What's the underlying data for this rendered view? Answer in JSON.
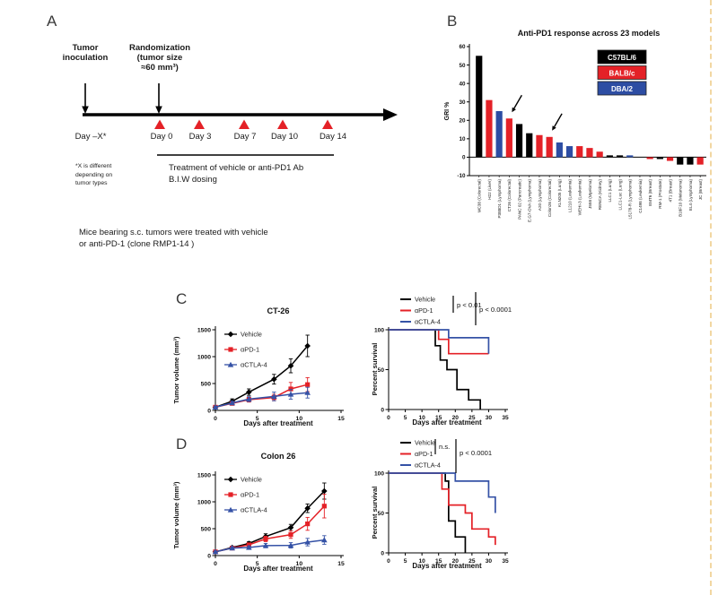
{
  "page": {
    "red": "#e42127",
    "blue": "#2d4da3",
    "black": "#000000",
    "line_blue": "#3552a6",
    "crop_border_color": "#f2d7a2"
  },
  "panelA": {
    "label": "A",
    "inoculation_line1": "Tumor",
    "inoculation_line2": "inoculation",
    "randomization_line1": "Randomization",
    "randomization_line2": "(tumor size",
    "randomization_line3": "≈60 mm³)",
    "day_labels": [
      "Day –X*",
      "Day 0",
      "Day 3",
      "Day 7",
      "Day 10",
      "Day 14"
    ],
    "footnote_line1": "*X is different",
    "footnote_line2": "depending on",
    "footnote_line3": "tumor types",
    "treatment_line1": "Treatment of vehicle or anti-PD1 Ab",
    "treatment_line2": "B.I.W dosing",
    "caption_line1": "Mice bearing s.c. tumors were treated with vehicle",
    "caption_line2": "or anti-PD-1 (clone RMP1-14 )"
  },
  "panelB": {
    "label": "B"
  },
  "panelC": {
    "label": "C"
  },
  "panelD": {
    "label": "D"
  },
  "chart_data": [
    {
      "id": "bar-models",
      "type": "bar",
      "title": "Anti-PD1 response across 23 models",
      "ylabel": "GRI %",
      "ylim": [
        -10,
        60
      ],
      "yticks": [
        60,
        50,
        40,
        30,
        20,
        10,
        0,
        -10
      ],
      "legend": [
        {
          "label": "C57BL/6",
          "color": "#000000"
        },
        {
          "label": "BALB/c",
          "color": "#e42127"
        },
        {
          "label": "DBA/2",
          "color": "#2d4da3"
        }
      ],
      "strain_colors": {
        "C57BL/6": "#000000",
        "BALB/c": "#e42127",
        "DBA/2": "#2d4da3"
      },
      "categories": [
        "MC38 (Colorectal)",
        "H22 (Liver)",
        "P388D1 (Lymphoma)",
        "CT26 (Colorectal)",
        "PANC 02 (Pancreatic)",
        "E.G7-OVA (Lymphoma)",
        "A20 (Lymphoma)",
        "Colon26 (Colorectal)",
        "KLN205 (Lung)",
        "L1210 (Leukemia)",
        "WEHI-3 (Leukemia)",
        "J558 (Myeloma)",
        "RENCA (Kidney)",
        "LLC1 (Lung)",
        "LLC1-Luc (Lung)",
        "L5178-R (Lymphoma)",
        "C1498 (Leukemia)",
        "EMT6 (Breast)",
        "RM-1 (Prostate)",
        "4T1 (Breast)",
        "B16F10 (Melanoma)",
        "EL4 (Lymphoma)",
        "JC (Breast)"
      ],
      "values": [
        55,
        31,
        25,
        21,
        18,
        13,
        12,
        11,
        8,
        6,
        6,
        5,
        3,
        1,
        1,
        1,
        0,
        -1,
        -1,
        -2,
        -4,
        -4,
        -4
      ],
      "strains": [
        "C57BL/6",
        "BALB/c",
        "DBA/2",
        "BALB/c",
        "C57BL/6",
        "C57BL/6",
        "BALB/c",
        "BALB/c",
        "DBA/2",
        "DBA/2",
        "BALB/c",
        "BALB/c",
        "BALB/c",
        "C57BL/6",
        "C57BL/6",
        "DBA/2",
        "C57BL/6",
        "BALB/c",
        "C57BL/6",
        "BALB/c",
        "C57BL/6",
        "C57BL/6",
        "BALB/c"
      ],
      "arrow_indices": [
        3,
        7
      ]
    },
    {
      "id": "ct26-volume",
      "type": "line",
      "title": "CT-26",
      "xlabel": "Days after treatment",
      "ylabel": "Tumor volume (mm³)",
      "xlim": [
        0,
        15
      ],
      "xticks": [
        0,
        5,
        10,
        15
      ],
      "ylim": [
        0,
        1500
      ],
      "yticks": [
        0,
        500,
        1000,
        1500
      ],
      "series": [
        {
          "name": "Vehicle",
          "color": "#000000",
          "marker": "diamond",
          "x": [
            0,
            2,
            4,
            7,
            9,
            11
          ],
          "y": [
            60,
            170,
            340,
            580,
            830,
            1200
          ],
          "err": [
            20,
            45,
            60,
            90,
            130,
            200
          ]
        },
        {
          "name": "αPD-1",
          "color": "#e42127",
          "marker": "square",
          "x": [
            0,
            2,
            4,
            7,
            9,
            11
          ],
          "y": [
            60,
            130,
            200,
            240,
            400,
            480
          ],
          "err": [
            20,
            30,
            45,
            60,
            120,
            130
          ]
        },
        {
          "name": "αCTLA-4",
          "color": "#3552a6",
          "marker": "triangle",
          "x": [
            0,
            2,
            4,
            7,
            9,
            11
          ],
          "y": [
            60,
            140,
            210,
            260,
            300,
            330
          ],
          "err": [
            20,
            30,
            45,
            80,
            90,
            100
          ]
        }
      ]
    },
    {
      "id": "ct26-survival",
      "type": "survival",
      "xlabel": "Days after treatment",
      "ylabel": "Percent survival",
      "xlim": [
        0,
        35
      ],
      "xticks": [
        0,
        5,
        10,
        15,
        20,
        25,
        30,
        35
      ],
      "ylim": [
        0,
        100
      ],
      "yticks": [
        0,
        50,
        100
      ],
      "annotations": [
        {
          "text": "p < 0.01"
        },
        {
          "text": "p < 0.0001"
        }
      ],
      "series": [
        {
          "name": "Vehicle",
          "color": "#000000",
          "points": [
            [
              0,
              100
            ],
            [
              14,
              100
            ],
            [
              14,
              80
            ],
            [
              15.5,
              80
            ],
            [
              15.5,
              62
            ],
            [
              17.5,
              62
            ],
            [
              17.5,
              50
            ],
            [
              20.5,
              50
            ],
            [
              20.5,
              25
            ],
            [
              24,
              25
            ],
            [
              24,
              12
            ],
            [
              27.5,
              12
            ],
            [
              27.5,
              0
            ]
          ]
        },
        {
          "name": "αPD-1",
          "color": "#e42127",
          "points": [
            [
              0,
              100
            ],
            [
              15,
              100
            ],
            [
              15,
              88
            ],
            [
              18,
              88
            ],
            [
              18,
              70
            ],
            [
              30,
              70
            ]
          ]
        },
        {
          "name": "αCTLA-4",
          "color": "#3552a6",
          "points": [
            [
              0,
              100
            ],
            [
              18,
              100
            ],
            [
              18,
              90
            ],
            [
              30,
              90
            ],
            [
              30,
              70
            ]
          ]
        }
      ]
    },
    {
      "id": "colon26-volume",
      "type": "line",
      "title": "Colon 26",
      "xlabel": "Days after treatment",
      "ylabel": "Tumor volume (mm³)",
      "xlim": [
        0,
        15
      ],
      "xticks": [
        0,
        5,
        10,
        15
      ],
      "ylim": [
        0,
        1500
      ],
      "yticks": [
        0,
        500,
        1000,
        1500
      ],
      "series": [
        {
          "name": "Vehicle",
          "color": "#000000",
          "marker": "diamond",
          "x": [
            0,
            2,
            4,
            6,
            9,
            11,
            13
          ],
          "y": [
            70,
            150,
            225,
            355,
            520,
            880,
            1200
          ],
          "err": [
            15,
            25,
            35,
            50,
            60,
            80,
            150
          ]
        },
        {
          "name": "αPD-1",
          "color": "#e42127",
          "marker": "square",
          "x": [
            0,
            2,
            4,
            6,
            9,
            11,
            13
          ],
          "y": [
            70,
            140,
            200,
            310,
            390,
            590,
            920
          ],
          "err": [
            15,
            25,
            35,
            50,
            70,
            120,
            220
          ]
        },
        {
          "name": "αCTLA-4",
          "color": "#3552a6",
          "marker": "triangle",
          "x": [
            0,
            2,
            4,
            6,
            9,
            11,
            13
          ],
          "y": [
            70,
            140,
            150,
            185,
            190,
            250,
            290
          ],
          "err": [
            15,
            25,
            30,
            40,
            50,
            70,
            80
          ]
        }
      ]
    },
    {
      "id": "colon26-survival",
      "type": "survival",
      "xlabel": "Days after treatment",
      "ylabel": "Percent survival",
      "xlim": [
        0,
        35
      ],
      "xticks": [
        0,
        5,
        10,
        15,
        20,
        25,
        30,
        35
      ],
      "ylim": [
        0,
        100
      ],
      "yticks": [
        0,
        50,
        100
      ],
      "annotations": [
        {
          "text": "n.s."
        },
        {
          "text": "p < 0.0001"
        }
      ],
      "series": [
        {
          "name": "Vehicle",
          "color": "#000000",
          "points": [
            [
              0,
              100
            ],
            [
              17,
              100
            ],
            [
              17,
              90
            ],
            [
              18,
              90
            ],
            [
              18,
              40
            ],
            [
              20,
              40
            ],
            [
              20,
              20
            ],
            [
              23,
              20
            ],
            [
              23,
              0
            ]
          ]
        },
        {
          "name": "αPD-1",
          "color": "#e42127",
          "points": [
            [
              0,
              100
            ],
            [
              16,
              100
            ],
            [
              16,
              80
            ],
            [
              18,
              80
            ],
            [
              18,
              60
            ],
            [
              23,
              60
            ],
            [
              23,
              50
            ],
            [
              25,
              50
            ],
            [
              25,
              30
            ],
            [
              30,
              30
            ],
            [
              30,
              20
            ],
            [
              32,
              20
            ],
            [
              32,
              10
            ]
          ]
        },
        {
          "name": "αCTLA-4",
          "color": "#3552a6",
          "points": [
            [
              0,
              100
            ],
            [
              20,
              100
            ],
            [
              20,
              90
            ],
            [
              30,
              90
            ],
            [
              30,
              70
            ],
            [
              32,
              70
            ],
            [
              32,
              50
            ]
          ]
        }
      ]
    }
  ]
}
